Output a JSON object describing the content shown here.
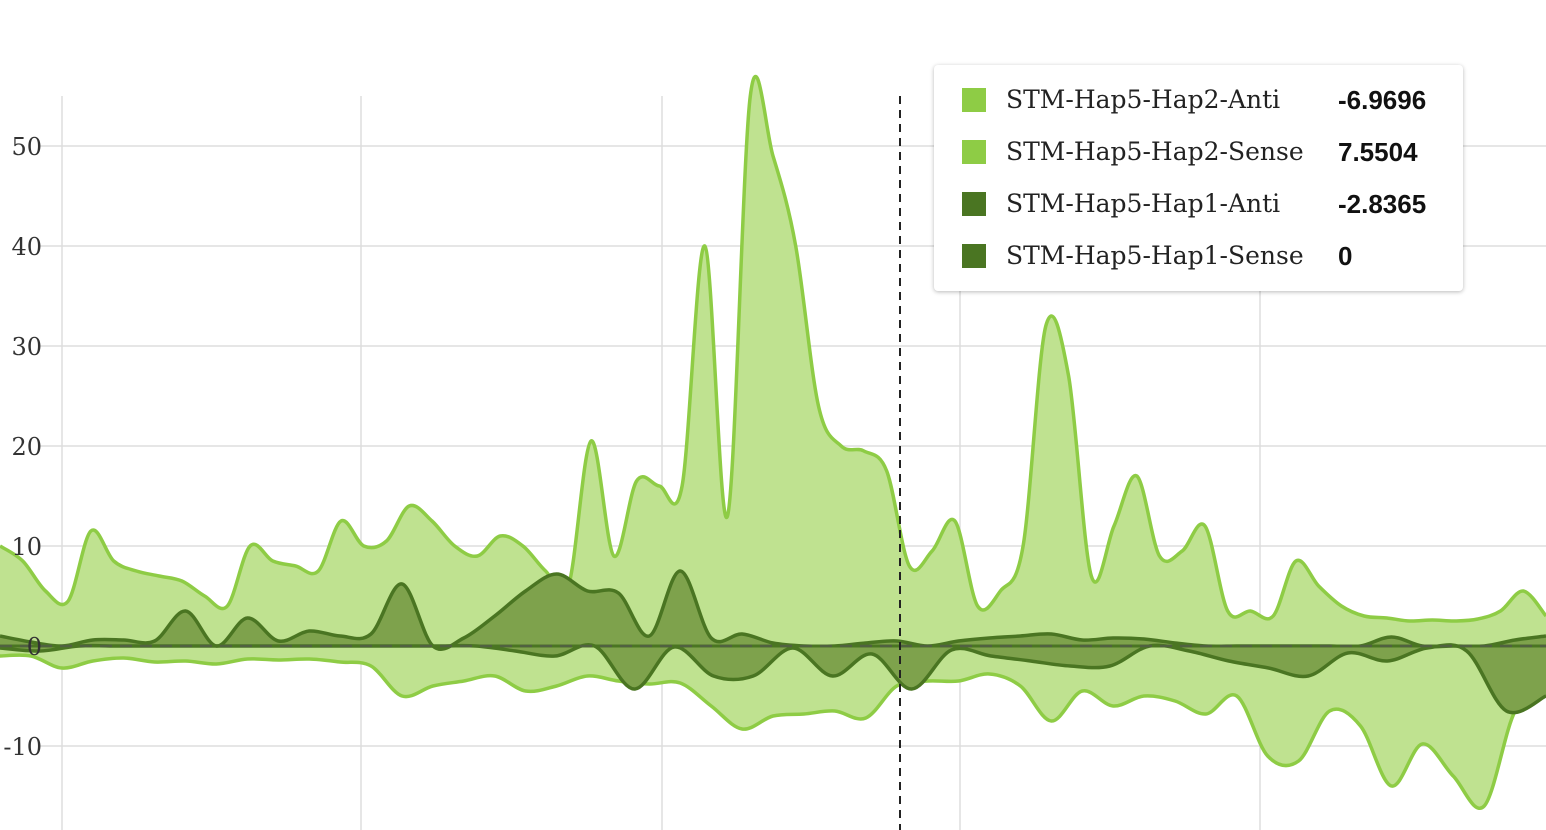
{
  "chart_data": {
    "type": "area",
    "ylim": [
      -18,
      55
    ],
    "y_ticks": [
      50,
      40,
      30,
      20,
      10,
      0,
      -10
    ],
    "grid": true,
    "colors": {
      "hap2_line": "#8ecc45",
      "hap2_fill": "#bfe290",
      "hap1_line": "#4a7522",
      "hap1_fill": "#7ea24c",
      "swatch_light": "#8ecc45",
      "swatch_dark": "#4a7522"
    },
    "series": [
      {
        "name": "STM-Hap5-Hap2-Sense",
        "values": [
          10,
          8.5,
          5.5,
          4.5,
          11.5,
          8.5,
          7.5,
          7,
          6.5,
          5,
          4,
          10,
          8.5,
          8,
          7.5,
          12.5,
          10,
          10.5,
          14,
          12.5,
          10,
          9,
          11,
          10,
          7.5,
          6,
          20.5,
          9,
          16.5,
          16,
          16,
          40,
          13,
          55,
          49,
          40,
          24,
          20,
          19.5,
          17.5,
          8,
          9.5,
          12.5,
          4,
          5.5,
          10,
          32,
          27,
          7,
          12,
          17,
          9,
          9.5,
          12,
          3.5,
          3.5,
          3,
          8.5,
          6,
          4,
          3,
          2.8,
          2.5,
          2.6,
          2.5,
          2.7,
          3.5,
          5.5,
          3
        ]
      },
      {
        "name": "STM-Hap5-Hap2-Anti",
        "values": [
          -1,
          -1,
          -2.2,
          -1.5,
          -1.2,
          -1.6,
          -1.5,
          -1.8,
          -1.3,
          -1.4,
          -1.3,
          -1.6,
          -2,
          -5,
          -4,
          -3.5,
          -3,
          -4.5,
          -4,
          -3,
          -3.5,
          -3.8,
          -3.7,
          -6,
          -8.3,
          -7,
          -6.8,
          -6.5,
          -7.2,
          -4,
          -3.5,
          -3.5,
          -2.8,
          -4,
          -7.5,
          -4.5,
          -6,
          -5,
          -5.5,
          -6.8,
          -5,
          -11,
          -11.5,
          -6.5,
          -8,
          -14,
          -9.8,
          -13,
          -16,
          -6.5,
          -4.5
        ]
      },
      {
        "name": "STM-Hap5-Hap1-Sense",
        "values": [
          1,
          0.4,
          0,
          0.6,
          0.6,
          0.5,
          3.5,
          0,
          2.8,
          0.5,
          1.5,
          1,
          1.2,
          6.2,
          0,
          0.8,
          3,
          5.5,
          7.2,
          5.5,
          5.3,
          1,
          7.5,
          0.8,
          1.2,
          0.3,
          0,
          0,
          0.3,
          0.5,
          0,
          0.5,
          0.8,
          1,
          1.2,
          0.6,
          0.8,
          0.7,
          0.3,
          0,
          0,
          0,
          0,
          0,
          0,
          0.9,
          0,
          0,
          0,
          0.6,
          1
        ]
      },
      {
        "name": "STM-Hap5-Hap1-Anti",
        "values": [
          -0.2,
          -0.5,
          0,
          0,
          0,
          0,
          0,
          0,
          0,
          0,
          0,
          0,
          0,
          -0.5,
          -1,
          0,
          -4.3,
          -0.1,
          -3,
          -3,
          -0.2,
          -3,
          -0.8,
          -4.3,
          -0.4,
          -1,
          -1.5,
          -2,
          -2,
          0,
          -0.5,
          -1.5,
          -2.2,
          -3,
          -0.7,
          -1.5,
          -0.2,
          -0.5,
          -6.5,
          -5
        ]
      }
    ],
    "tooltip": [
      {
        "name": "STM-Hap5-Hap2-Anti",
        "value": "-6.9696",
        "swatch": "light"
      },
      {
        "name": "STM-Hap5-Hap2-Sense",
        "value": "7.5504",
        "swatch": "light"
      },
      {
        "name": "STM-Hap5-Hap1-Anti",
        "value": "-2.8365",
        "swatch": "dark"
      },
      {
        "name": "STM-Hap5-Hap1-Sense",
        "value": "0",
        "swatch": "dark"
      }
    ]
  }
}
